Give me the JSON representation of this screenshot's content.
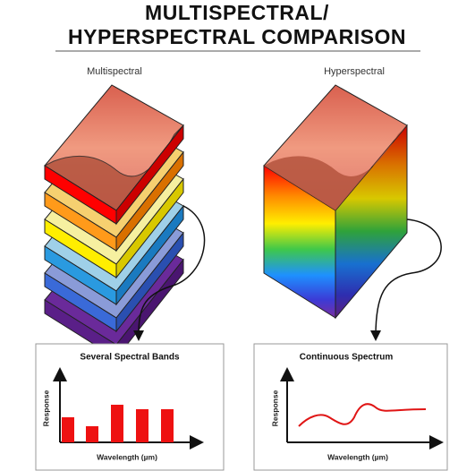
{
  "header": {
    "title_lines": [
      "MULTISPECTRAL/",
      "HYPERSPECTRAL COMPARISON"
    ]
  },
  "panels": [
    {
      "label": "Multispectral",
      "chart": {
        "title": "Several Spectral Bands",
        "y_label": "Response",
        "x_label": "Wavelength (µm)"
      }
    },
    {
      "label": "Hyperspectral",
      "chart": {
        "title": "Continuous Spectrum",
        "y_label": "Response",
        "x_label": "Wavelength (µm)"
      }
    }
  ]
}
